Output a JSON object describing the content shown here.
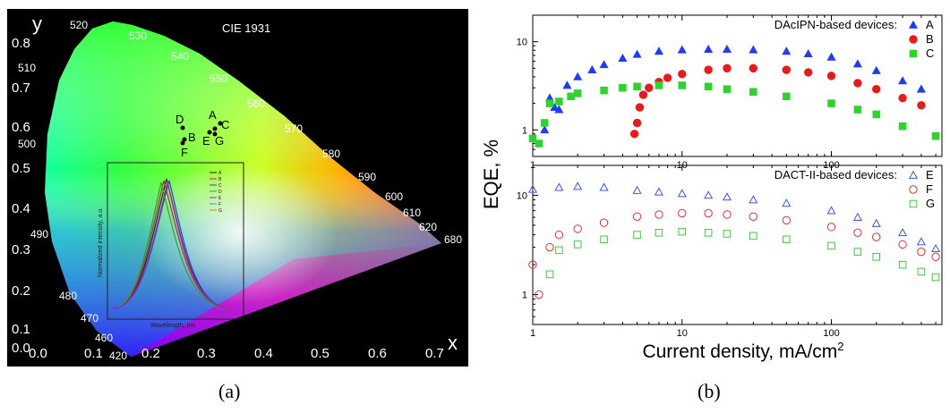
{
  "panel_a": {
    "caption": "(a)",
    "title": "CIE 1931",
    "x_axis_letter": "x",
    "y_axis_letter": "y",
    "x_ticks": [
      "0.0",
      "0.1",
      "0.2",
      "0.3",
      "0.4",
      "0.5",
      "0.6",
      "0.7"
    ],
    "y_ticks": [
      "0.0",
      "0.1",
      "0.2",
      "0.3",
      "0.4",
      "0.5",
      "0.6",
      "0.7",
      "0.8"
    ],
    "wavelengths": [
      "520",
      "530",
      "540",
      "550",
      "560",
      "570",
      "580",
      "590",
      "600",
      "610",
      "620",
      "680",
      "510",
      "500",
      "490",
      "480",
      "470",
      "460",
      "420"
    ],
    "points": [
      "A",
      "B",
      "C",
      "D",
      "E",
      "F",
      "G"
    ],
    "inset": {
      "ylabel": "Normalized intensity, a.u.",
      "xlabel": "Wavelength, nm",
      "legend": [
        "A",
        "B",
        "C",
        "D",
        "E",
        "F",
        "G"
      ]
    }
  },
  "panel_b": {
    "caption": "(b)",
    "ylabel": "EQE, %",
    "xlabel_main": "Current density, mA/cm",
    "xlabel_sup": "2",
    "top_legend_title": "DAcIPN-based devices:",
    "bottom_legend_title": "DACT-II-based devices:",
    "top_series": [
      {
        "name": "A",
        "color": "#1e3cff",
        "marker": "triangle-filled"
      },
      {
        "name": "B",
        "color": "#e81a1a",
        "marker": "circle-filled"
      },
      {
        "name": "C",
        "color": "#2ed42e",
        "marker": "square-filled"
      }
    ],
    "bottom_series": [
      {
        "name": "E",
        "color": "#3a55ee",
        "marker": "triangle-open"
      },
      {
        "name": "F",
        "color": "#e23030",
        "marker": "circle-open"
      },
      {
        "name": "G",
        "color": "#3ccc3c",
        "marker": "square-open"
      }
    ],
    "x_ticks": [
      "1",
      "10",
      "100"
    ],
    "y_ticks": [
      "1",
      "10"
    ]
  },
  "chart_data": [
    {
      "type": "scatter",
      "title": "CIE 1931",
      "xlabel": "x",
      "ylabel": "y",
      "xlim": [
        0.0,
        0.8
      ],
      "ylim": [
        0.0,
        0.85
      ],
      "points": [
        {
          "label": "A",
          "x": 0.32,
          "y": 0.62
        },
        {
          "label": "C",
          "x": 0.33,
          "y": 0.6
        },
        {
          "label": "D",
          "x": 0.26,
          "y": 0.59
        },
        {
          "label": "B",
          "x": 0.27,
          "y": 0.56
        },
        {
          "label": "E",
          "x": 0.31,
          "y": 0.57
        },
        {
          "label": "G",
          "x": 0.32,
          "y": 0.57
        },
        {
          "label": "F",
          "x": 0.26,
          "y": 0.55
        }
      ]
    },
    {
      "type": "scatter",
      "title": "",
      "xlabel": "Current density, mA/cm2",
      "ylabel": "EQE, %",
      "x_scale": "log",
      "y_scale": "log",
      "xlim": [
        1,
        550
      ],
      "panels": [
        {
          "legend_title": "DAcIPN-based devices:",
          "ylim": [
            0.5,
            20
          ],
          "series": [
            {
              "name": "A",
              "x": [
                1.2,
                1.3,
                1.4,
                1.5,
                1.7,
                2.0,
                2.5,
                3.0,
                4.0,
                5.0,
                7.0,
                10,
                15,
                20,
                30,
                50,
                70,
                100,
                150,
                200,
                300,
                400
              ],
              "y": [
                1.0,
                2.3,
                1.8,
                1.7,
                3.2,
                4.0,
                4.8,
                5.5,
                6.5,
                7.2,
                7.8,
                8.1,
                8.2,
                8.2,
                8.1,
                7.8,
                7.3,
                6.7,
                5.6,
                4.7,
                3.6,
                2.9
              ]
            },
            {
              "name": "B",
              "x": [
                4.8,
                5.0,
                5.2,
                5.5,
                6.0,
                7.0,
                8.0,
                10,
                15,
                20,
                30,
                50,
                70,
                100,
                150,
                200,
                300,
                400
              ],
              "y": [
                0.9,
                1.2,
                1.8,
                2.5,
                3.0,
                3.5,
                3.9,
                4.3,
                4.8,
                5.0,
                5.0,
                4.8,
                4.5,
                4.1,
                3.4,
                2.9,
                2.3,
                1.9
              ]
            },
            {
              "name": "C",
              "x": [
                1.0,
                1.1,
                1.2,
                1.3,
                1.5,
                1.8,
                2.0,
                3.0,
                4.0,
                5.0,
                7.0,
                10,
                15,
                20,
                30,
                50,
                100,
                150,
                200,
                300,
                500
              ],
              "y": [
                0.8,
                0.7,
                1.2,
                2.0,
                2.1,
                2.4,
                2.6,
                2.8,
                3.0,
                3.1,
                3.2,
                3.2,
                3.1,
                2.9,
                2.7,
                2.4,
                2.0,
                1.7,
                1.5,
                1.1,
                0.85
              ]
            }
          ]
        },
        {
          "legend_title": "DACT-II-based devices:",
          "ylim": [
            0.5,
            20
          ],
          "series": [
            {
              "name": "E",
              "x": [
                1,
                1.5,
                2,
                3,
                5,
                7,
                10,
                15,
                20,
                30,
                50,
                100,
                150,
                200,
                300,
                400,
                500
              ],
              "y": [
                11.5,
                12.0,
                12.3,
                12.0,
                11.2,
                10.8,
                10.4,
                10.0,
                9.6,
                9.0,
                8.3,
                7.0,
                6.0,
                5.2,
                4.2,
                3.4,
                2.9
              ]
            },
            {
              "name": "F",
              "x": [
                1,
                1.1,
                1.3,
                1.5,
                2,
                3,
                5,
                7,
                10,
                15,
                20,
                30,
                50,
                100,
                150,
                200,
                300,
                400,
                500
              ],
              "y": [
                2.0,
                1.0,
                3.0,
                4.0,
                4.6,
                5.3,
                6.1,
                6.4,
                6.6,
                6.6,
                6.4,
                6.1,
                5.6,
                4.8,
                4.2,
                3.8,
                3.2,
                2.7,
                2.4
              ]
            },
            {
              "name": "G",
              "x": [
                1.3,
                1.5,
                2,
                3,
                5,
                7,
                10,
                15,
                20,
                30,
                50,
                100,
                150,
                200,
                300,
                400,
                500
              ],
              "y": [
                1.6,
                2.8,
                3.2,
                3.6,
                4.0,
                4.2,
                4.3,
                4.2,
                4.1,
                3.9,
                3.6,
                3.1,
                2.7,
                2.4,
                2.0,
                1.7,
                1.5
              ]
            }
          ]
        }
      ]
    }
  ]
}
